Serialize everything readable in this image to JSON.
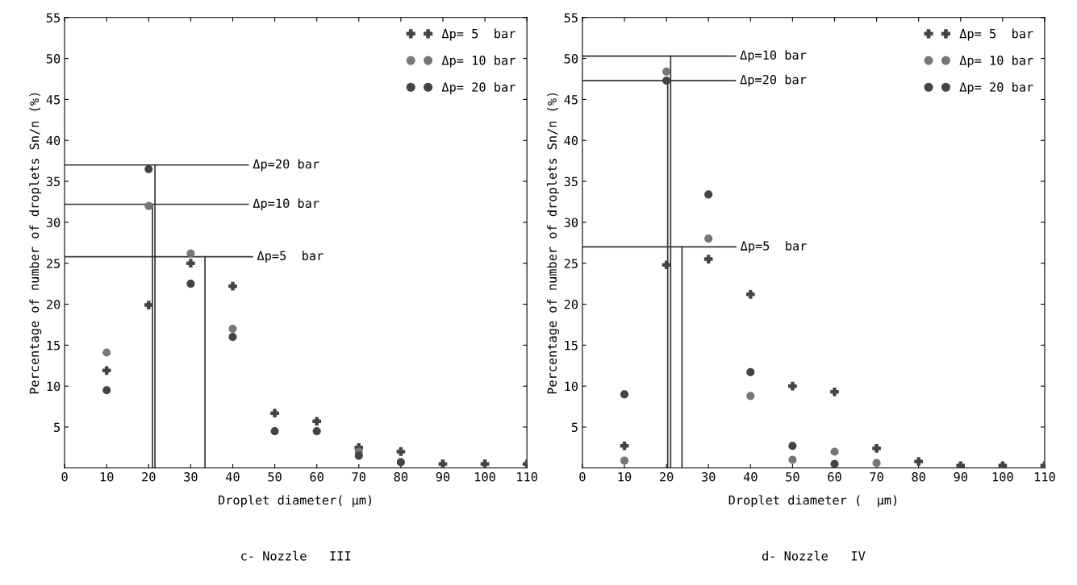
{
  "chart_data": [
    {
      "type": "scatter",
      "title": "c- Nozzle   III",
      "xlabel": "Droplet diameter( µm)",
      "ylabel": "Percentage of number of droplets Sn/n (%)",
      "xlim": [
        0,
        110
      ],
      "ylim": [
        0,
        55
      ],
      "xticks": [
        0,
        10,
        20,
        30,
        40,
        50,
        60,
        70,
        80,
        90,
        100,
        110
      ],
      "yticks": [
        5,
        10,
        15,
        20,
        25,
        30,
        35,
        40,
        45,
        50,
        55
      ],
      "grid": false,
      "legend": "top right",
      "series": [
        {
          "name": "Δp= 5  bar",
          "marker": "cross",
          "color": "#444444",
          "x": [
            10,
            20,
            30,
            40,
            50,
            60,
            70,
            80,
            90,
            100,
            110
          ],
          "values": [
            11.9,
            19.9,
            25.0,
            22.2,
            6.7,
            5.7,
            2.5,
            2.0,
            0.5,
            0.5,
            0.5
          ]
        },
        {
          "name": "Δp= 10 bar",
          "marker": "circle",
          "color": "#777777",
          "x": [
            10,
            20,
            30,
            40,
            60,
            70
          ],
          "values": [
            14.1,
            32.0,
            26.2,
            17.0,
            null,
            2.0
          ]
        },
        {
          "name": "Δp= 20 bar",
          "marker": "circle",
          "color": "#444444",
          "x": [
            10,
            20,
            30,
            40,
            50,
            60,
            70,
            80
          ],
          "values": [
            9.5,
            36.5,
            22.5,
            16.0,
            4.5,
            4.5,
            1.5,
            0.7
          ]
        },
        {
          "type": "line",
          "color": "#333333",
          "x": [
            0,
            43.7
          ],
          "values": [
            37.0,
            37.0
          ]
        },
        {
          "type": "line",
          "color": "#333333",
          "x": [
            21.5,
            21.5
          ],
          "values": [
            37.0,
            0
          ]
        },
        {
          "type": "line",
          "color": "#333333",
          "x": [
            0,
            43.7
          ],
          "values": [
            32.2,
            32.2
          ]
        },
        {
          "type": "line",
          "color": "#333333",
          "x": [
            20.9,
            20.9
          ],
          "values": [
            32.2,
            0
          ]
        },
        {
          "type": "line",
          "color": "#333333",
          "x": [
            0,
            44.7
          ],
          "values": [
            25.8,
            25.8
          ]
        },
        {
          "type": "line",
          "color": "#333333",
          "x": [
            33.4,
            33.4
          ],
          "values": [
            25.8,
            0
          ]
        }
      ],
      "annotations": [
        {
          "text": "Δp=20 bar",
          "x": 43.7,
          "y": 37.0
        },
        {
          "text": "Δp=10 bar",
          "x": 43.7,
          "y": 32.2
        },
        {
          "text": "Δp=5  bar",
          "x": 44.7,
          "y": 25.8
        }
      ]
    },
    {
      "type": "scatter",
      "title": "d- Nozzle   IV",
      "xlabel": "Droplet diameter (  µm)",
      "ylabel": "Percentage of number of droplets Sn/n (%)",
      "xlim": [
        0,
        110
      ],
      "ylim": [
        0,
        55
      ],
      "xticks": [
        0,
        10,
        20,
        30,
        40,
        50,
        60,
        70,
        80,
        90,
        100,
        110
      ],
      "yticks": [
        5,
        10,
        15,
        20,
        25,
        30,
        35,
        40,
        45,
        50,
        55
      ],
      "grid": false,
      "legend": "top right",
      "series": [
        {
          "name": "Δp= 5  bar",
          "marker": "cross",
          "color": "#444444",
          "x": [
            10,
            20,
            30,
            40,
            50,
            60,
            70,
            80,
            90,
            100,
            110
          ],
          "values": [
            2.7,
            24.8,
            25.5,
            21.2,
            10.0,
            9.3,
            2.4,
            0.8,
            0.3,
            0.3,
            0.3
          ]
        },
        {
          "name": "Δp= 10 bar",
          "marker": "circle",
          "color": "#777777",
          "x": [
            10,
            20,
            30,
            40,
            50,
            60,
            70
          ],
          "values": [
            0.9,
            48.4,
            28.0,
            8.8,
            1.0,
            2.0,
            0.6
          ]
        },
        {
          "name": "Δp= 20 bar",
          "marker": "circle",
          "color": "#444444",
          "x": [
            10,
            20,
            30,
            40,
            50,
            60
          ],
          "values": [
            9.0,
            47.3,
            33.4,
            11.7,
            2.7,
            0.5
          ]
        },
        {
          "type": "line",
          "color": "#333333",
          "x": [
            0,
            36.4
          ],
          "values": [
            50.3,
            50.3
          ]
        },
        {
          "type": "line",
          "color": "#333333",
          "x": [
            21.0,
            21.0
          ],
          "values": [
            50.3,
            0
          ]
        },
        {
          "type": "line",
          "color": "#333333",
          "x": [
            0,
            36.4
          ],
          "values": [
            47.3,
            47.3
          ]
        },
        {
          "type": "line",
          "color": "#333333",
          "x": [
            20.3,
            20.3
          ],
          "values": [
            47.3,
            0
          ]
        },
        {
          "type": "line",
          "color": "#333333",
          "x": [
            0,
            36.5
          ],
          "values": [
            27.0,
            27.0
          ]
        },
        {
          "type": "line",
          "color": "#333333",
          "x": [
            23.7,
            23.7
          ],
          "values": [
            27.0,
            0
          ]
        }
      ],
      "annotations": [
        {
          "text": "Δp=10 bar",
          "x": 36.4,
          "y": 50.3
        },
        {
          "text": "Δp=20 bar",
          "x": 36.4,
          "y": 47.3
        },
        {
          "text": "Δp=5  bar",
          "x": 36.5,
          "y": 27.0
        }
      ]
    }
  ]
}
